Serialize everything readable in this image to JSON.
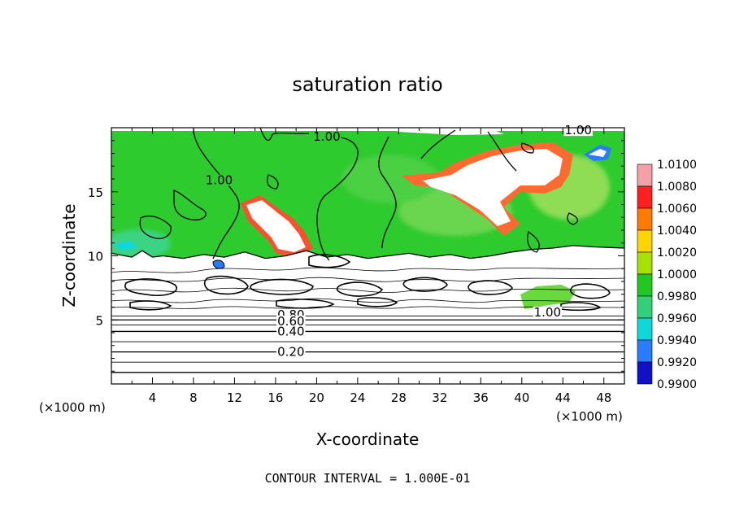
{
  "chart_data": {
    "type": "heatmap",
    "title": "saturation ratio",
    "xlabel": "X-coordinate",
    "ylabel": "Z-coordinate",
    "x_unit": "(×1000 m)",
    "x_unit_right": "(×1000 m)",
    "xlim": [
      0,
      50
    ],
    "ylim": [
      0,
      20
    ],
    "x_ticks": [
      4,
      8,
      12,
      16,
      20,
      24,
      28,
      32,
      36,
      40,
      44,
      48
    ],
    "y_ticks": [
      5,
      10,
      15
    ],
    "footer": "CONTOUR INTERVAL = 1.000E-01",
    "colorbar": {
      "levels": [
        "1.0100",
        "1.0080",
        "1.0060",
        "1.0040",
        "1.0020",
        "1.0000",
        "0.9980",
        "0.9960",
        "0.9940",
        "0.9920",
        "0.9900"
      ],
      "colors": [
        "#f3a0a8",
        "#ff2020",
        "#ff7a00",
        "#ffd400",
        "#a8e000",
        "#22c822",
        "#33d07a",
        "#10d8d8",
        "#2a7cff",
        "#1010c8",
        "#5a1ab0"
      ]
    },
    "contour_labels": [
      {
        "text": "1.00",
        "x": 21,
        "z": 19.3
      },
      {
        "text": "1.00",
        "x": 45.5,
        "z": 19.8
      },
      {
        "text": "1.00",
        "x": 10.5,
        "z": 15.9
      },
      {
        "text": "1.00",
        "x": 42.5,
        "z": 5.6
      },
      {
        "text": "0.80",
        "x": 17.5,
        "z": 5.4
      },
      {
        "text": "0.60",
        "x": 17.5,
        "z": 4.9
      },
      {
        "text": "0.40",
        "x": 17.5,
        "z": 4.1
      },
      {
        "text": "0.20",
        "x": 17.5,
        "z": 2.5
      }
    ],
    "horizontal_contours_z": [
      0.9,
      1.7,
      2.5,
      3.3,
      4.1,
      4.6,
      5.0,
      5.3
    ]
  }
}
